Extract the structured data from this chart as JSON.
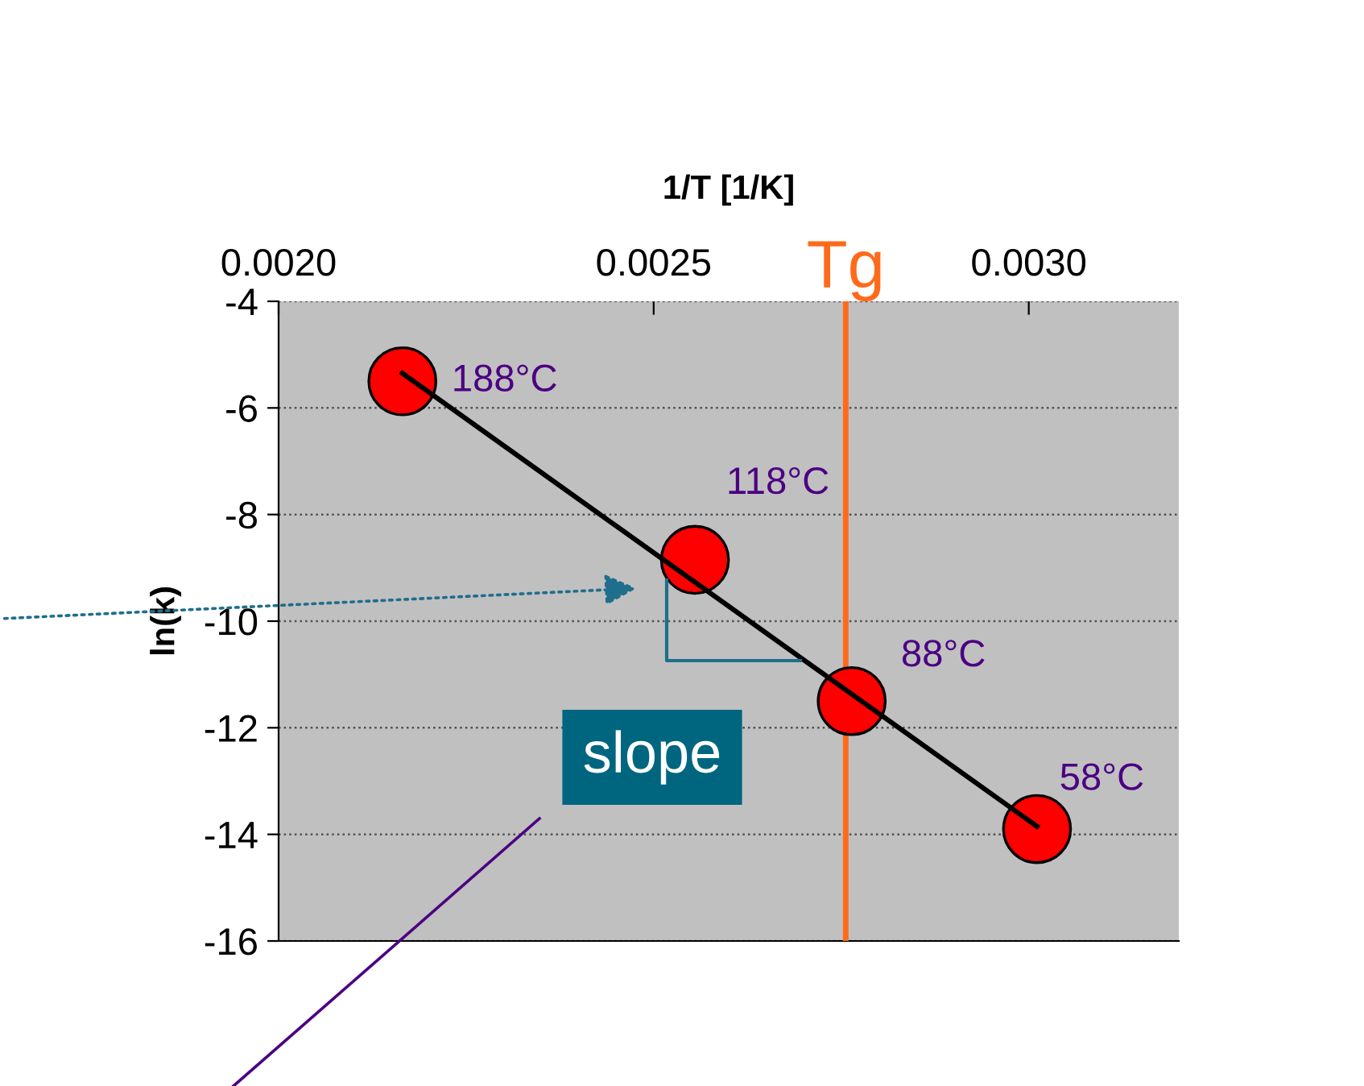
{
  "chart_data": {
    "type": "scatter",
    "xlabel": "1/T [1/K]",
    "ylabel": "ln(k)",
    "xlim": [
      0.002,
      0.0032
    ],
    "xticks": [
      {
        "value": 0.002,
        "label": "0.0020"
      },
      {
        "value": 0.0025,
        "label": "0.0025"
      },
      {
        "value": 0.003,
        "label": "0.0030"
      }
    ],
    "ylim": [
      -16,
      -4
    ],
    "yticks": [
      -16,
      -14,
      -12,
      -10,
      -8,
      -6,
      -4
    ],
    "grid": "y",
    "legend": false,
    "series": [
      {
        "type": "scatter",
        "marker": "circle",
        "color": "#ff0000",
        "x": [
          0.002165,
          0.002555,
          0.002764,
          0.003011
        ],
        "values": [
          -5.5,
          -8.85,
          -11.5,
          -13.9
        ]
      },
      {
        "type": "line",
        "marker": "none",
        "color": "#000000",
        "x": [
          0.002165,
          0.003011
        ],
        "values": [
          -5.35,
          -13.85
        ]
      }
    ],
    "ref_lines": [
      {
        "axis": "x",
        "value": 0.002756,
        "label": "Tg",
        "color": "#ff6a1a"
      }
    ],
    "annotations": [
      {
        "text": "188°C",
        "x": 0.002165,
        "y": -5.5
      },
      {
        "text": "118°C",
        "x": 0.002555,
        "y": -8.85
      },
      {
        "text": "88°C",
        "x": 0.002764,
        "y": -11.5
      },
      {
        "text": "58°C",
        "x": 0.003011,
        "y": -13.9
      },
      "slope"
    ]
  }
}
